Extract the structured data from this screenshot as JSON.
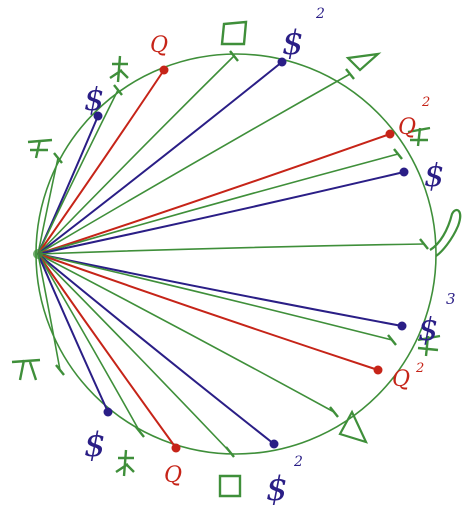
{
  "colors": {
    "green": "#3f8f3a",
    "red": "#c62418",
    "purple": "#2a1e86",
    "background": "#ffffff"
  },
  "labels": {
    "top_q": "Q",
    "top_square": "□",
    "top_dollar": "$",
    "top_dollar_sup": "2",
    "right_q": "Q",
    "right_q_sup": "2",
    "right_dollar": "$",
    "right_dollar_sup": "3",
    "right_q_lower": "Q",
    "right_q_lower_sup": "2",
    "left_dollar": "$",
    "bottom_dollar": "$",
    "bottom_q": "Q",
    "bottom_square": "□",
    "bottom_dollar_right": "$",
    "bottom_dollar_right_sup": "2"
  },
  "icons": {
    "triangle": "triangle-icon",
    "square": "square-icon",
    "crossed_stick": "crossed-stick-icon",
    "pitchfork": "pitchfork-icon",
    "loop": "loop-icon"
  }
}
